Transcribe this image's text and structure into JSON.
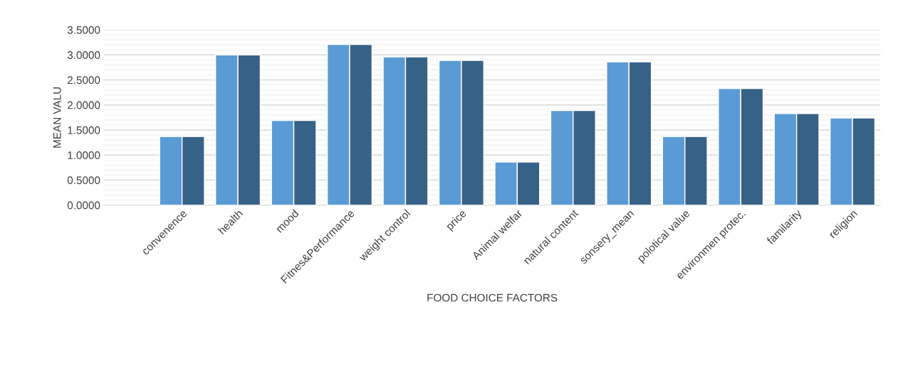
{
  "chart_data": {
    "type": "bar",
    "xlabel": "FOOD CHOICE FACTORS",
    "ylabel": "MEAN VALU",
    "categories": [
      "convenence",
      "health",
      "mood",
      "Fitnes&Performance",
      "weight control",
      "price",
      "Animal welfar",
      "natural content",
      "sonsery_mean",
      "polotical value",
      "environmen protec.",
      "familarity",
      "religion"
    ],
    "series": [
      {
        "color": "#5b9bd5",
        "values": [
          1.37,
          3.0,
          1.69,
          3.21,
          2.96,
          2.89,
          0.86,
          1.89,
          2.86,
          1.37,
          2.33,
          1.83,
          1.74
        ]
      },
      {
        "color": "#376287",
        "values": [
          1.37,
          3.0,
          1.69,
          3.21,
          2.96,
          2.89,
          0.86,
          1.89,
          2.86,
          1.37,
          2.33,
          1.83,
          1.74
        ]
      }
    ],
    "ylim": [
      0,
      3.5
    ],
    "yticks": [
      {
        "value": 0,
        "label": "0.0000"
      },
      {
        "value": 0.5,
        "label": "0.5000"
      },
      {
        "value": 1,
        "label": "1.0000"
      },
      {
        "value": 1.5,
        "label": "1.5000"
      },
      {
        "value": 2,
        "label": "2.0000"
      },
      {
        "value": 2.5,
        "label": "2.5000"
      },
      {
        "value": 3,
        "label": "3.0000"
      },
      {
        "value": 3.5,
        "label": "3.5000"
      }
    ],
    "grid": "y"
  }
}
